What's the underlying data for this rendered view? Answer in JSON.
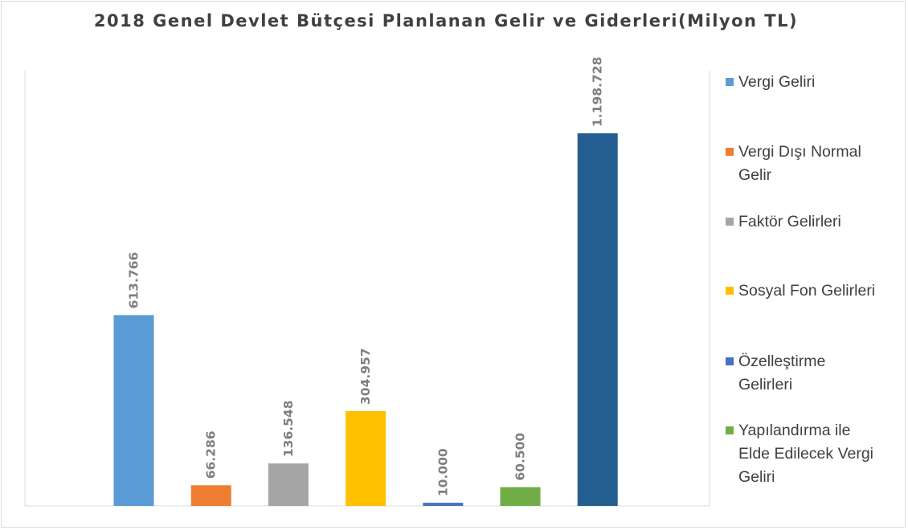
{
  "chart_data": {
    "type": "bar",
    "title": "2018 Genel Devlet Bütçesi Planlanan Gelir ve Giderleri(Milyon TL)",
    "xlabel": "",
    "ylabel": "",
    "ylim": [
      0,
      1300000
    ],
    "grid": false,
    "legend_position": "right",
    "categories": [
      "Vergi Geliri",
      "Vergi Dışı Normal Gelir",
      "Faktör Gelirleri",
      "Sosyal Fon Gelirleri",
      "Özelleştirme Gelirleri",
      "Yapılandırma ile Elde Edilecek Vergi Geliri",
      ""
    ],
    "values": [
      613766,
      66286,
      136548,
      304957,
      10000,
      60500,
      1198728
    ],
    "data_labels": [
      "613.766",
      "66.286",
      "136.548",
      "304.957",
      "10.000",
      "60.500",
      "1.198.728"
    ],
    "colors": [
      "#5b9bd5",
      "#ed7d31",
      "#a5a5a5",
      "#ffc000",
      "#4472c4",
      "#70ad47",
      "#255e91"
    ],
    "legend": [
      {
        "lines": [
          "Vergi Geliri"
        ],
        "color": "#5b9bd5"
      },
      {
        "lines": [
          "Vergi Dışı Normal",
          "Gelir"
        ],
        "color": "#ed7d31"
      },
      {
        "lines": [
          "Faktör Gelirleri"
        ],
        "color": "#a5a5a5"
      },
      {
        "lines": [
          "Sosyal Fon Gelirleri"
        ],
        "color": "#ffc000"
      },
      {
        "lines": [
          "Özelleştirme",
          "Gelirleri"
        ],
        "color": "#4472c4"
      },
      {
        "lines": [
          "Yapılandırma ile",
          "Elde Edilecek Vergi",
          "Geliri"
        ],
        "color": "#70ad47"
      }
    ]
  }
}
